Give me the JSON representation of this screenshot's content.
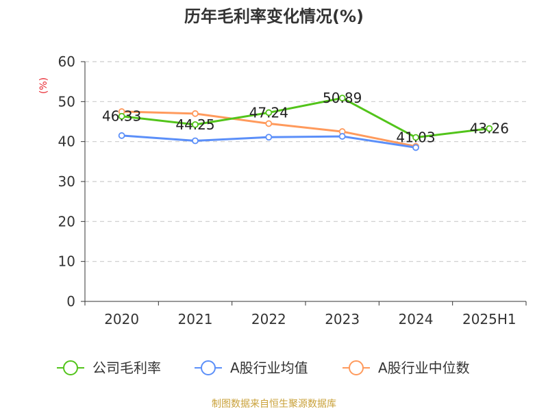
{
  "chart_data": {
    "type": "line",
    "title": "历年毛利率变化情况(%)",
    "ylabel": "(%)",
    "xlabel": "",
    "categories": [
      "2020",
      "2021",
      "2022",
      "2023",
      "2024",
      "2025H1"
    ],
    "ylim": [
      0,
      60
    ],
    "yticks": [
      0,
      10,
      20,
      30,
      40,
      50,
      60
    ],
    "grid": true,
    "legend_position": "bottom",
    "series": [
      {
        "name": "公司毛利率",
        "color": "#52c41a",
        "values": [
          46.33,
          44.25,
          47.24,
          50.89,
          41.03,
          43.26
        ],
        "labels": [
          "46.33",
          "44.25",
          "47.24",
          "50.89",
          "41.03",
          "43.26"
        ]
      },
      {
        "name": "A股行业均值",
        "color": "#5b8ff9",
        "values": [
          41.5,
          40.2,
          41.1,
          41.3,
          38.5,
          null
        ],
        "labels": null
      },
      {
        "name": "A股行业中位数",
        "color": "#ff9a5c",
        "values": [
          47.5,
          47.0,
          44.5,
          42.5,
          38.8,
          null
        ],
        "labels": null
      }
    ]
  },
  "source_text": "制图数据来自恒生聚源数据库"
}
